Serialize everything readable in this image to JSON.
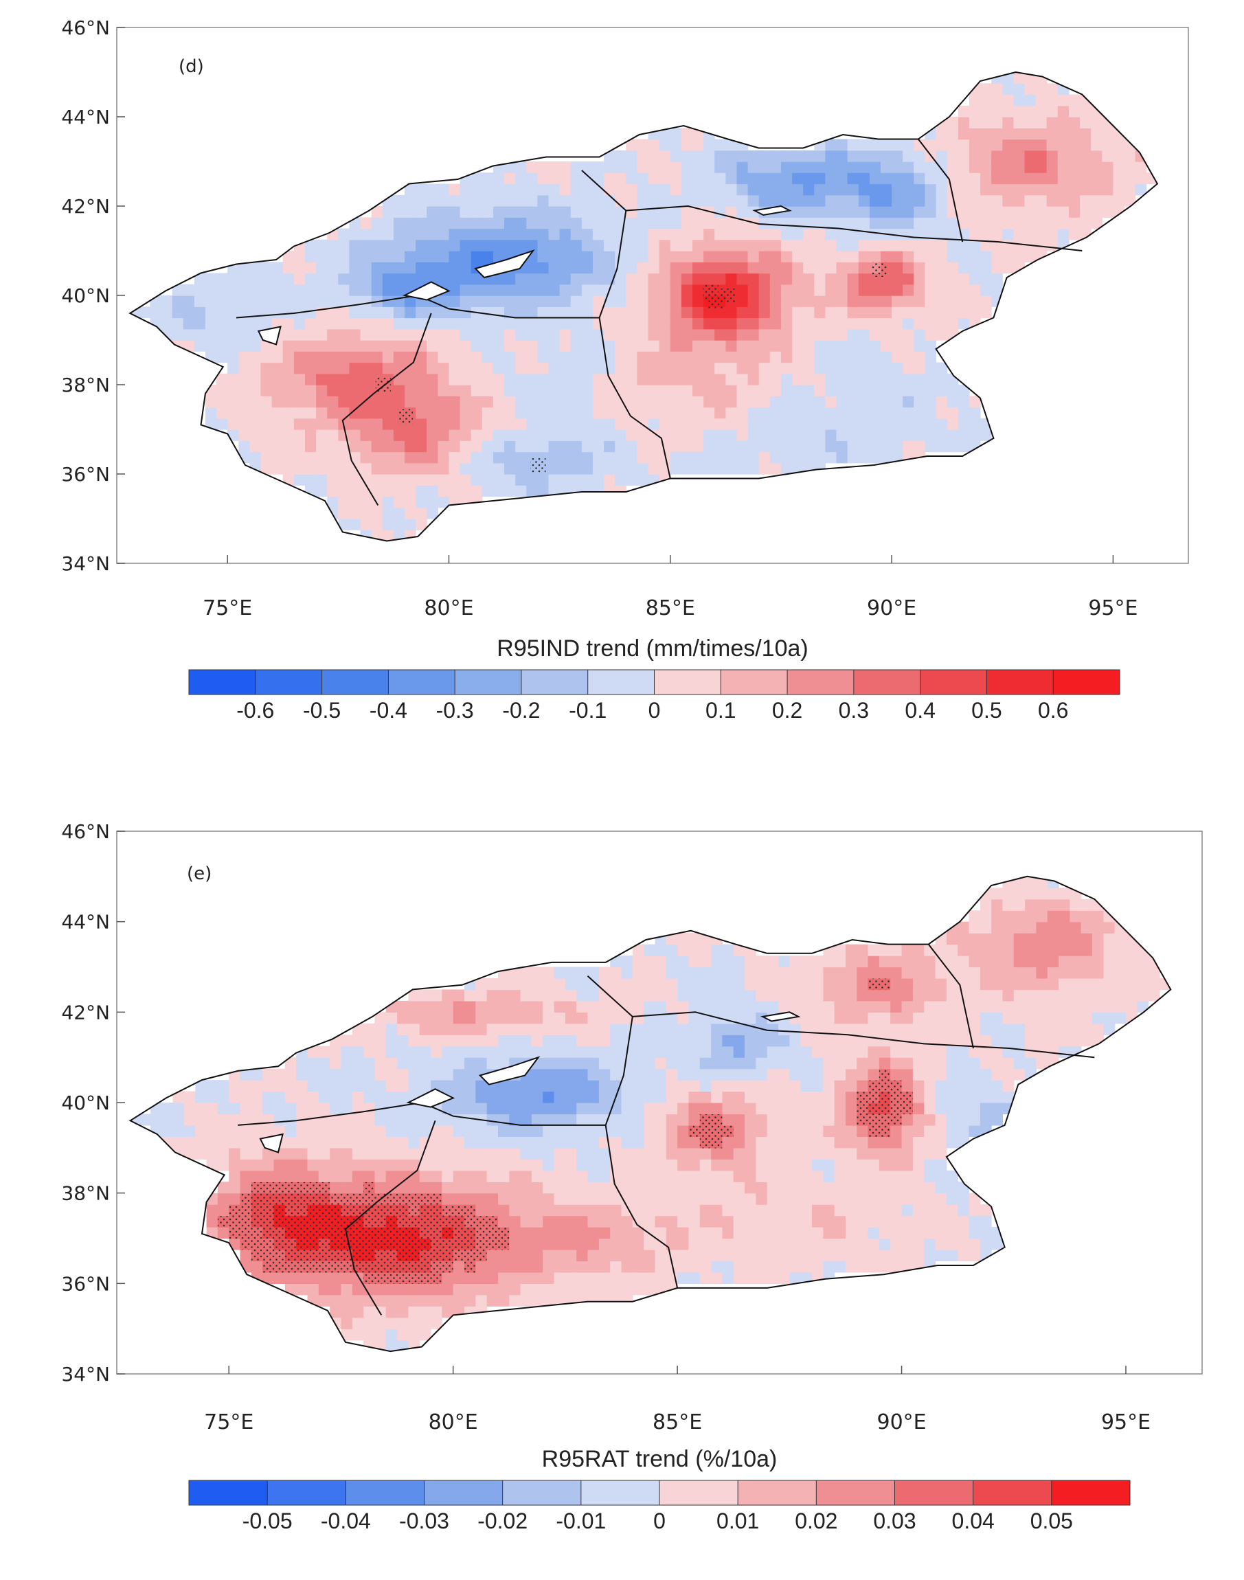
{
  "panels": [
    {
      "panel_label": "(d)",
      "colorbar_title": "R95IND trend (mm/times/10a)",
      "colorbar_ticks": [
        "-0.6",
        "-0.5",
        "-0.4",
        "-0.3",
        "-0.2",
        "-0.1",
        "0",
        "0.1",
        "0.2",
        "0.3",
        "0.4",
        "0.5",
        "0.6"
      ],
      "lat_labels": [
        "46°N",
        "44°N",
        "42°N",
        "40°N",
        "38°N",
        "36°N",
        "34°N"
      ],
      "lon_labels": [
        "75°E",
        "80°E",
        "85°E",
        "90°E",
        "95°E"
      ]
    },
    {
      "panel_label": "(e)",
      "colorbar_title": "R95RAT trend (%/10a)",
      "colorbar_ticks": [
        "-0.05",
        "-0.04",
        "-0.03",
        "-0.02",
        "-0.01",
        "0",
        "0.01",
        "0.02",
        "0.03",
        "0.04",
        "0.05"
      ],
      "lat_labels": [
        "46°N",
        "44°N",
        "42°N",
        "40°N",
        "38°N",
        "36°N",
        "34°N"
      ],
      "lon_labels": [
        "75°E",
        "80°E",
        "85°E",
        "90°E",
        "95°E"
      ]
    }
  ],
  "colors": {
    "d": [
      "#1f5cf2",
      "#3570ef",
      "#4a82ec",
      "#6a98ea",
      "#8aaeeb",
      "#aec4ee",
      "#cfdaf4",
      "#f8d4d6",
      "#f4b2b5",
      "#f08f93",
      "#ec6b70",
      "#ec4a4f",
      "#ee2c31",
      "#f41d22"
    ],
    "e": [
      "#1f5cf2",
      "#3d74ef",
      "#5e8eec",
      "#84a8eb",
      "#aec4ee",
      "#cfdaf4",
      "#f8d4d6",
      "#f4b2b5",
      "#f08f93",
      "#ec6b70",
      "#ec4a4f",
      "#f41d22"
    ]
  }
}
